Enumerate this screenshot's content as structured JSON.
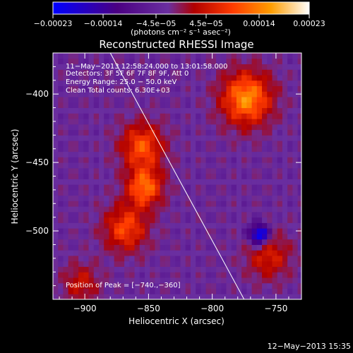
{
  "chart_data": {
    "type": "heatmap",
    "title": "Reconstructed RHESSI Image",
    "xlabel": "Heliocentric X (arcsec)",
    "ylabel": "Heliocentric Y (arcsec)",
    "xlim": [
      -925,
      -730
    ],
    "ylim": [
      -550,
      -370
    ],
    "x_ticks": [
      -900,
      -850,
      -800,
      -750
    ],
    "y_ticks": [
      -400,
      -450,
      -500
    ],
    "x_tick_labels": [
      "−900",
      "−850",
      "−800",
      "−750"
    ],
    "y_tick_labels": [
      "−400",
      "−450",
      "−500"
    ],
    "colorbar": {
      "min": -0.00023,
      "max": 0.00023,
      "ticks": [
        -0.00023,
        -0.00014,
        -4.5e-05,
        4.5e-05,
        0.00014,
        0.00023
      ],
      "tick_labels": [
        "−0.00023",
        "−0.00014",
        "−4.5e−05",
        "4.5e−05",
        "0.00014",
        "0.00023"
      ],
      "unit_label": "(photons cm⁻² s⁻¹ asec⁻²)",
      "colors": [
        "#0000ff",
        "#4b0082",
        "#6a2fa0",
        "#b00000",
        "#ff3b00",
        "#ff9d00",
        "#ffffff"
      ]
    },
    "annotations": [
      "11−May−2013 12:58:24.000 to 13:01:58.000",
      "Detectors: 3F 5F 6F 7F 8F 9F, Att 0",
      "Energy Range: 25.0 − 50.0 keV",
      "Clean     Total counts: 6.30E+03",
      "Position of Peak = [−740.,−360]"
    ],
    "limb_line": {
      "x": [
        -880,
        -775
      ],
      "y": [
        -370,
        -550
      ]
    },
    "emission_regions": [
      {
        "name": "upper-right",
        "x": -775,
        "y": -405,
        "intensity": 0.00022
      },
      {
        "name": "ridge-top",
        "x": -857,
        "y": -440,
        "intensity": 0.00017
      },
      {
        "name": "ridge-mid",
        "x": -855,
        "y": -470,
        "intensity": 0.00019
      },
      {
        "name": "ridge-low",
        "x": -870,
        "y": -500,
        "intensity": 0.00016
      },
      {
        "name": "lower-right",
        "x": -758,
        "y": -520,
        "intensity": 0.00012
      },
      {
        "name": "bottom-left",
        "x": -905,
        "y": -540,
        "intensity": 0.0001
      },
      {
        "name": "negative-dip",
        "x": -765,
        "y": -505,
        "intensity": -0.0002
      }
    ]
  },
  "footer": {
    "timestamp": "12−May−2013 15:35"
  }
}
